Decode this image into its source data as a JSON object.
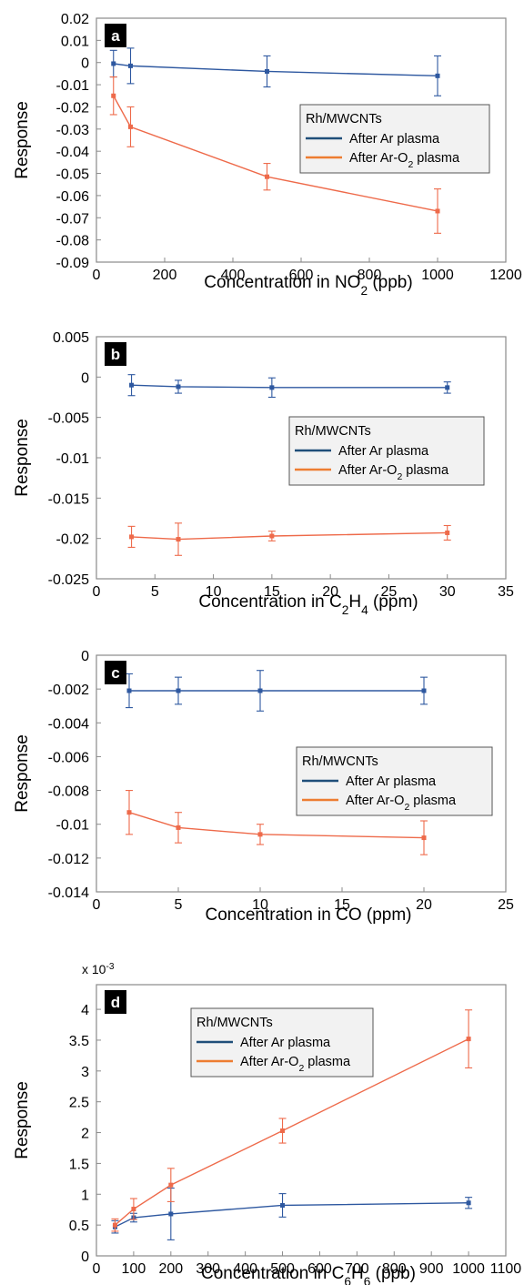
{
  "colors": {
    "ar": "#2E58A0",
    "ar_o2": "#EE6A4A",
    "legend_ar": "#1F4E79",
    "legend_ar_o2": "#ED7D31",
    "legend_bg": "#F2F2F2"
  },
  "chart_data": [
    {
      "type": "line",
      "panel_label": "a",
      "xlabel": "Concentration in NO{sub:2} (ppb)",
      "ylabel": "Response",
      "xlim": [
        0,
        1200
      ],
      "ylim": [
        -0.09,
        0.02
      ],
      "x_ticks": [
        "0",
        "200",
        "400",
        "600",
        "800",
        "1000",
        "1200"
      ],
      "y_ticks": [
        "0.02",
        "0.01",
        "0",
        "-0.01",
        "-0.02",
        "-0.03",
        "-0.04",
        "-0.05",
        "-0.06",
        "-0.07",
        "-0.08",
        "-0.09"
      ],
      "grid": false,
      "legend": {
        "title": "Rh/MWCNTs",
        "placement": "center-right",
        "entries": [
          "After Ar plasma",
          "After Ar-O{sub:2} plasma"
        ]
      },
      "series": [
        {
          "name": "After Ar plasma",
          "color_key": "ar",
          "x": [
            50,
            100,
            500,
            1000
          ],
          "y": [
            -0.0005,
            -0.0015,
            -0.004,
            -0.006
          ],
          "err": [
            0.006,
            0.008,
            0.007,
            0.009
          ]
        },
        {
          "name": "After Ar-O{sub:2} plasma",
          "color_key": "ar_o2",
          "x": [
            50,
            100,
            500,
            1000
          ],
          "y": [
            -0.015,
            -0.029,
            -0.0515,
            -0.067
          ],
          "err": [
            0.0085,
            0.009,
            0.006,
            0.01
          ]
        }
      ]
    },
    {
      "type": "line",
      "panel_label": "b",
      "xlabel": "Concentration in C{sub:2}H{sub:4} (ppm)",
      "ylabel": "Response",
      "xlim": [
        0,
        35
      ],
      "ylim": [
        -0.025,
        0.005
      ],
      "x_ticks": [
        "0",
        "5",
        "10",
        "15",
        "20",
        "25",
        "30",
        "35"
      ],
      "y_ticks": [
        "0.005",
        "0",
        "-0.005",
        "-0.01",
        "-0.015",
        "-0.02",
        "-0.025"
      ],
      "grid": false,
      "legend": {
        "title": "Rh/MWCNTs",
        "placement": "center-right",
        "entries": [
          "After Ar plasma",
          "After Ar-O{sub:2} plasma"
        ]
      },
      "series": [
        {
          "name": "After Ar plasma",
          "color_key": "ar",
          "x": [
            3,
            7,
            15,
            30
          ],
          "y": [
            -0.001,
            -0.0012,
            -0.0013,
            -0.0013
          ],
          "err": [
            0.0013,
            0.0008,
            0.0012,
            0.0007
          ]
        },
        {
          "name": "After Ar-O{sub:2} plasma",
          "color_key": "ar_o2",
          "x": [
            3,
            7,
            15,
            30
          ],
          "y": [
            -0.0198,
            -0.0201,
            -0.0197,
            -0.0193
          ],
          "err": [
            0.0013,
            0.002,
            0.0006,
            0.0009
          ]
        }
      ]
    },
    {
      "type": "line",
      "panel_label": "c",
      "xlabel": "Concentration in CO (ppm)",
      "ylabel": "Response",
      "xlim": [
        0,
        25
      ],
      "ylim": [
        -0.014,
        0
      ],
      "x_ticks": [
        "0",
        "5",
        "10",
        "15",
        "20",
        "25"
      ],
      "y_ticks": [
        "0",
        "-0.002",
        "-0.004",
        "-0.006",
        "-0.008",
        "-0.01",
        "-0.012",
        "-0.014"
      ],
      "grid": false,
      "legend": {
        "title": "Rh/MWCNTs",
        "placement": "center-right",
        "entries": [
          "After Ar plasma",
          "After Ar-O{sub:2} plasma"
        ]
      },
      "series": [
        {
          "name": "After Ar plasma",
          "color_key": "ar",
          "x": [
            2,
            5,
            10,
            20
          ],
          "y": [
            -0.0021,
            -0.0021,
            -0.0021,
            -0.0021
          ],
          "err": [
            0.001,
            0.0008,
            0.0012,
            0.0008
          ]
        },
        {
          "name": "After Ar-O{sub:2} plasma",
          "color_key": "ar_o2",
          "x": [
            2,
            5,
            10,
            20
          ],
          "y": [
            -0.0093,
            -0.0102,
            -0.0106,
            -0.0108
          ],
          "err": [
            0.0013,
            0.0009,
            0.0006,
            0.001
          ]
        }
      ]
    },
    {
      "type": "line",
      "panel_label": "d",
      "xlabel": "Concentration in C{sub:6}H{sub:6} (ppb)",
      "ylabel": "Response",
      "y_multiplier": "x 10{sup:-3}",
      "xlim": [
        0,
        1100
      ],
      "ylim": [
        0,
        4.4
      ],
      "x_ticks": [
        "0",
        "100",
        "200",
        "300",
        "400",
        "500",
        "600",
        "700",
        "800",
        "900",
        "1000",
        "1100"
      ],
      "y_ticks": [
        "4",
        "3.5",
        "3",
        "2.5",
        "2",
        "1.5",
        "1",
        "0.5",
        "0"
      ],
      "grid": false,
      "legend": {
        "title": "Rh/MWCNTs",
        "placement": "top-left",
        "entries": [
          "After Ar plasma",
          "After Ar-O{sub:2} plasma"
        ]
      },
      "series": [
        {
          "name": "After Ar plasma",
          "color_key": "ar",
          "x": [
            50,
            100,
            200,
            500,
            1000
          ],
          "y": [
            0.47,
            0.62,
            0.68,
            0.82,
            0.86
          ],
          "err": [
            0.1,
            0.07,
            0.42,
            0.19,
            0.09
          ]
        },
        {
          "name": "After Ar-O{sub:2} plasma",
          "color_key": "ar_o2",
          "x": [
            50,
            100,
            200,
            500,
            1000
          ],
          "y": [
            0.5,
            0.76,
            1.15,
            2.03,
            3.52
          ],
          "err": [
            0.1,
            0.17,
            0.27,
            0.2,
            0.47
          ]
        }
      ]
    }
  ]
}
